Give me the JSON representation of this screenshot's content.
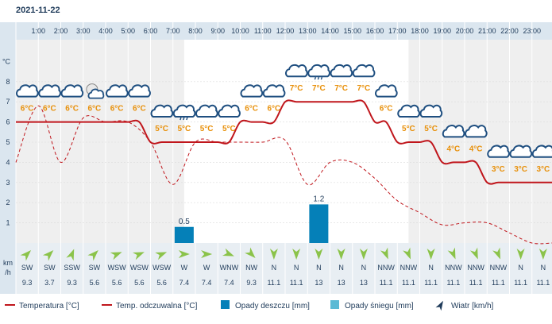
{
  "date": "2021-11-22",
  "chart_data": {
    "type": "line",
    "hours": [
      "1:00",
      "2:00",
      "3:00",
      "4:00",
      "5:00",
      "6:00",
      "7:00",
      "8:00",
      "9:00",
      "10:00",
      "11:00",
      "12:00",
      "13:00",
      "14:00",
      "15:00",
      "16:00",
      "17:00",
      "18:00",
      "19:00",
      "20:00",
      "21:00",
      "22:00",
      "23:00"
    ],
    "y_axis": {
      "unit": "°C",
      "ticks": [
        1,
        2,
        3,
        4,
        5,
        6,
        7,
        8
      ],
      "ylim": [
        0,
        9
      ]
    },
    "temperature": [
      6,
      6,
      6,
      6,
      6,
      6,
      5,
      5,
      5,
      5,
      6,
      6,
      7,
      7,
      7,
      7,
      6,
      5,
      5,
      4,
      4,
      3,
      3,
      3
    ],
    "temperature_labels": [
      "6°C",
      "6°C",
      "6°C",
      "6°C",
      "6°C",
      "6°C",
      "5°C",
      "5°C",
      "5°C",
      "5°C",
      "6°C",
      "6°C",
      "7°C",
      "7°C",
      "7°C",
      "7°C",
      "6°C",
      "5°C",
      "5°C",
      "4°C",
      "4°C",
      "3°C",
      "3°C",
      "3°C"
    ],
    "feels_like": [
      4,
      6.8,
      4,
      6.2,
      6,
      6,
      5,
      2.9,
      5,
      5,
      5,
      5,
      5.1,
      2.9,
      4,
      4,
      3.2,
      2.1,
      1.5,
      0.9,
      1,
      1,
      0.5,
      0
    ],
    "rain": [
      0,
      0,
      0,
      0,
      0,
      0,
      0,
      0.5,
      0,
      0,
      0,
      0,
      0,
      1.2,
      0,
      0,
      0,
      0,
      0,
      0,
      0,
      0,
      0,
      0
    ],
    "rain_labels": [
      "",
      "",
      "",
      "",
      "",
      "",
      "",
      "0.5",
      "",
      "",
      "",
      "",
      "",
      "1.2",
      "",
      "",
      "",
      "",
      "",
      "",
      "",
      "",
      "",
      ""
    ],
    "icons": [
      "cloudy",
      "cloudy",
      "cloudy",
      "partly-cloudy-night",
      "cloudy",
      "cloudy",
      "cloudy",
      "rain-cloud",
      "cloudy",
      "cloudy",
      "cloudy",
      "cloudy",
      "cloudy",
      "rain-cloud",
      "cloudy",
      "cloudy",
      "cloudy",
      "cloudy",
      "cloudy",
      "cloudy",
      "cloudy",
      "cloudy",
      "cloudy",
      "cloudy"
    ],
    "wind": {
      "unit_line1": "km",
      "unit_line2": "/h",
      "directions": [
        "SW",
        "SW",
        "SSW",
        "SW",
        "WSW",
        "WSW",
        "WSW",
        "W",
        "W",
        "WNW",
        "NW",
        "N",
        "N",
        "N",
        "N",
        "N",
        "NNW",
        "NNW",
        "N",
        "NNW",
        "NNW",
        "NNW",
        "N",
        "N"
      ],
      "speeds": [
        "9.3",
        "3.7",
        "9.3",
        "5.6",
        "5.6",
        "5.6",
        "5.6",
        "7.4",
        "7.4",
        "7.4",
        "9.3",
        "11.1",
        "11.1",
        "13",
        "13",
        "13",
        "11.1",
        "11.1",
        "11.1",
        "11.1",
        "11.1",
        "11.1",
        "11.1",
        "11.1"
      ],
      "arrow_angles": [
        45,
        45,
        22,
        45,
        68,
        68,
        68,
        90,
        90,
        112,
        135,
        180,
        180,
        180,
        180,
        180,
        158,
        158,
        180,
        158,
        158,
        158,
        180,
        180
      ]
    },
    "colors": {
      "temperature": "#c0161c",
      "feels_like": "#c0161c",
      "rain": "#0580b8",
      "snow": "#5bbad5",
      "temp_label": "#e8900a",
      "wind_arrow": "#8bc34a",
      "hour_band": "#dbe6ef",
      "plot_bg": "#efefef",
      "night_bg": "#ffffff",
      "text": "#1f3b5a"
    }
  },
  "legend": [
    {
      "label": "Temperatura [°C]",
      "kind": "line-solid",
      "color": "#c0161c"
    },
    {
      "label": "Temp. odczuwalna [°C]",
      "kind": "line-solid",
      "color": "#c0161c"
    },
    {
      "label": "Opady deszczu [mm]",
      "kind": "box",
      "color": "#0580b8"
    },
    {
      "label": "Opady śniegu [mm]",
      "kind": "box",
      "color": "#5bbad5"
    },
    {
      "label": "Wiatr [km/h]",
      "kind": "arrow",
      "color": "#1f3b5a"
    }
  ]
}
